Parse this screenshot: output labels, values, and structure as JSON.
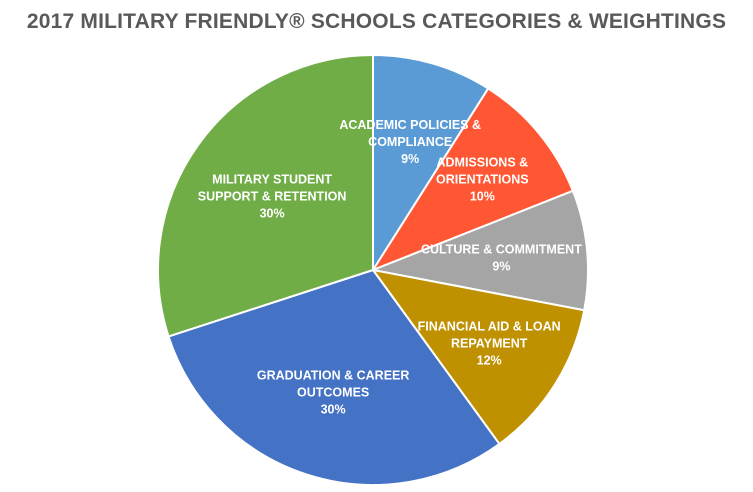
{
  "chart_data": {
    "type": "pie",
    "title": "2017 MILITARY FRIENDLY® SCHOOLS CATEGORIES & WEIGHTINGS",
    "slices": [
      {
        "label": [
          "ACADEMIC POLICIES &",
          "COMPLIANCE"
        ],
        "value": 9,
        "value_label": "9%",
        "color": "#5B9BD5"
      },
      {
        "label": [
          "ADMISSIONS &",
          "ORIENTATIONS"
        ],
        "value": 10,
        "value_label": "10%",
        "color": "#FF5733"
      },
      {
        "label": [
          "CULTURE & COMMITMENT"
        ],
        "value": 9,
        "value_label": "9%",
        "color": "#A5A5A5"
      },
      {
        "label": [
          "FINANCIAL AID & LOAN",
          "REPAYMENT"
        ],
        "value": 12,
        "value_label": "12%",
        "color": "#BF9000"
      },
      {
        "label": [
          "GRADUATION & CAREER",
          "OUTCOMES"
        ],
        "value": 30,
        "value_label": "30%",
        "color": "#4472C4"
      },
      {
        "label": [
          "MILITARY STUDENT",
          "SUPPORT & RETENTION"
        ],
        "value": 30,
        "value_label": "30%",
        "color": "#70AD47"
      }
    ],
    "start_angle": "12 o'clock",
    "direction": "clockwise",
    "legend": "none"
  }
}
